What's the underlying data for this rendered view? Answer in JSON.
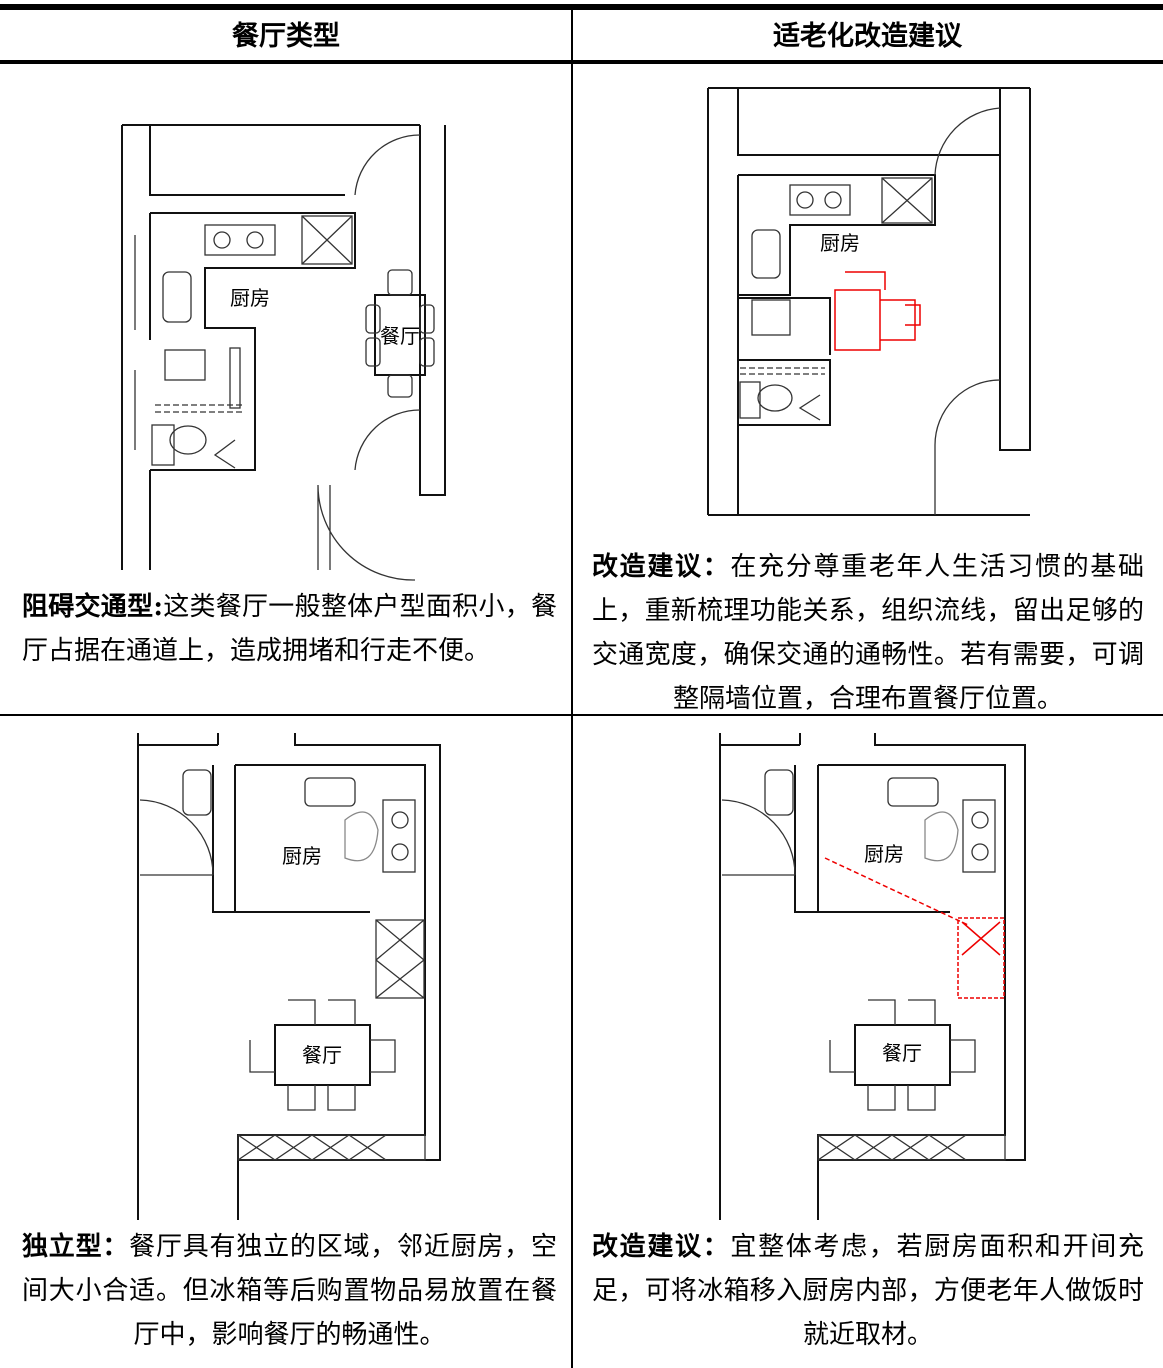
{
  "header": [
    "餐厅类型",
    "适老化改造建议"
  ],
  "rows": [
    {
      "cells": [
        {
          "labels": [
            "厨房",
            "餐厅"
          ],
          "caption": {
            "bold": "阻碍交通型:",
            "text": "这类餐厅一般整体户型面积小，餐厅占据在通道上，造成拥堵和行走不便。"
          }
        },
        {
          "labels": [
            "厨房"
          ],
          "caption": {
            "bold": "改造建议：",
            "text": "在充分尊重老年人生活习惯的基础上，重新梳理功能关系，组织流线，留出足够的交通宽度，确保交通的通畅性。若有需要，可调整隔墙位置，合理布置餐厅位置。"
          }
        }
      ]
    },
    {
      "cells": [
        {
          "labels": [
            "厨房",
            "餐厅"
          ],
          "caption": {
            "bold": "独立型：",
            "text": "餐厅具有独立的区域，邻近厨房，空间大小合适。但冰箱等后购置物品易放置在餐厅中，影响餐厅的畅通性。"
          }
        },
        {
          "labels": [
            "厨房",
            "餐厅"
          ],
          "caption": {
            "bold": "改造建议：",
            "text": "宜整体考虑，若厨房面积和开间充足，可将冰箱移入厨房内部，方便老年人做饭时就近取材。"
          }
        }
      ]
    }
  ]
}
